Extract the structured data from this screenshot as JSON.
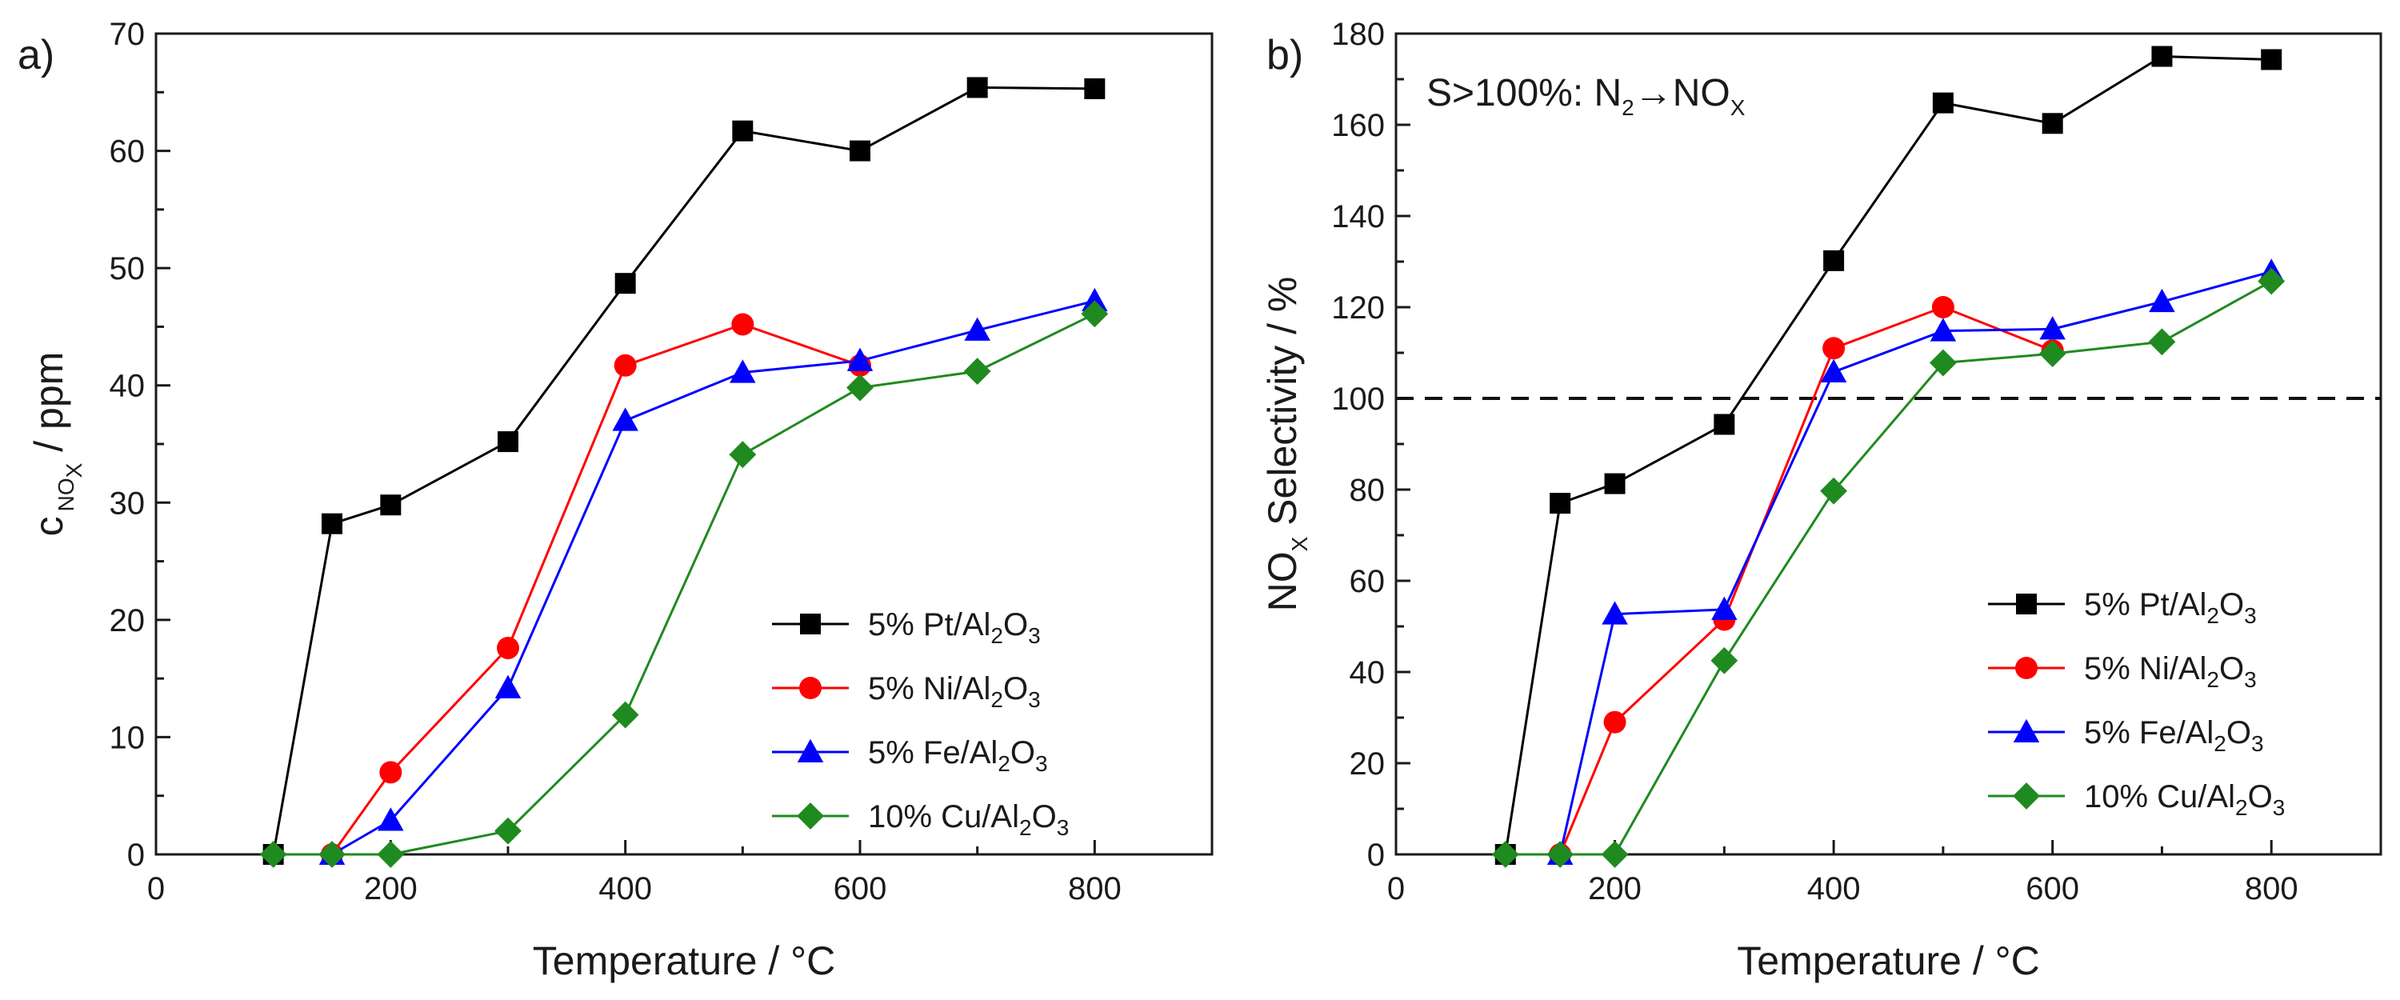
{
  "chart_data": [
    {
      "type": "line",
      "panel": "a)",
      "xlabel": "Temperature / °C",
      "ylabel": {
        "base": "c",
        "sub": "NO",
        "subsub": "X",
        "rest": " / ppm"
      },
      "xlim": [
        0,
        900
      ],
      "ylim": [
        0,
        70
      ],
      "xticks": [
        0,
        200,
        400,
        600,
        800
      ],
      "yticks": [
        0,
        10,
        20,
        30,
        40,
        50,
        60,
        70
      ],
      "legend_position": "lower-right",
      "series": [
        {
          "name": "5% Pt/Al2O3",
          "label": [
            "5% Pt/Al",
            "2",
            "O",
            "3"
          ],
          "color": "#000000",
          "marker": "square",
          "x": [
            100,
            150,
            200,
            300,
            400,
            500,
            600,
            700,
            800
          ],
          "y": [
            0,
            28.2,
            29.8,
            35.2,
            48.7,
            61.7,
            60,
            65.4,
            65.3
          ]
        },
        {
          "name": "5% Ni/Al2O3",
          "label": [
            "5% Ni/Al",
            "2",
            "O",
            "3"
          ],
          "color": "#ff0000",
          "marker": "circle",
          "x": [
            150,
            200,
            300,
            400,
            500,
            600
          ],
          "y": [
            0,
            7,
            17.6,
            41.7,
            45.2,
            41.7
          ]
        },
        {
          "name": "5% Fe/Al2O3",
          "label": [
            "5% Fe/Al",
            "2",
            "O",
            "3"
          ],
          "color": "#0000ff",
          "marker": "triangle",
          "x": [
            150,
            200,
            300,
            400,
            500,
            600,
            700,
            800
          ],
          "y": [
            0,
            2.9,
            14.2,
            37,
            41.1,
            42.1,
            44.7,
            47.2
          ]
        },
        {
          "name": "10% Cu/Al2O3",
          "label": [
            "10% Cu/Al",
            "2",
            "O",
            "3"
          ],
          "color": "#1f8a1f",
          "marker": "diamond",
          "x": [
            100,
            150,
            200,
            300,
            400,
            500,
            600,
            700,
            800
          ],
          "y": [
            0,
            0,
            0,
            2,
            11.9,
            34.1,
            39.8,
            41.2,
            46.1
          ]
        }
      ]
    },
    {
      "type": "line",
      "panel": "b)",
      "xlabel": "Temperature / °C",
      "ylabel": {
        "base": "NO",
        "sub": "X",
        "rest": " Selectivity / %"
      },
      "xlim": [
        0,
        900
      ],
      "ylim": [
        0,
        180
      ],
      "xticks": [
        0,
        200,
        400,
        600,
        800
      ],
      "yticks": [
        0,
        20,
        40,
        60,
        80,
        100,
        120,
        140,
        160,
        180
      ],
      "reference_line": 100,
      "annotation": {
        "pre": "S>100%: N",
        "sub1": "2",
        "arrow": "→NO",
        "sub2": "X"
      },
      "legend_position": "lower-right",
      "series": [
        {
          "name": "5% Pt/Al2O3",
          "label": [
            "5% Pt/Al",
            "2",
            "O",
            "3"
          ],
          "color": "#000000",
          "marker": "square",
          "x": [
            100,
            150,
            200,
            300,
            400,
            500,
            600,
            700,
            800
          ],
          "y": [
            0,
            77,
            81.3,
            94.3,
            130.2,
            164.8,
            160.3,
            175,
            174.3
          ]
        },
        {
          "name": "5% Ni/Al2O3",
          "label": [
            "5% Ni/Al",
            "2",
            "O",
            "3"
          ],
          "color": "#ff0000",
          "marker": "circle",
          "x": [
            150,
            200,
            300,
            400,
            500,
            600
          ],
          "y": [
            0,
            29,
            51.5,
            111,
            120,
            110.5
          ]
        },
        {
          "name": "5% Fe/Al2O3",
          "label": [
            "5% Fe/Al",
            "2",
            "O",
            "3"
          ],
          "color": "#0000ff",
          "marker": "triangle",
          "x": [
            150,
            200,
            300,
            400,
            500,
            600,
            700,
            800
          ],
          "y": [
            0,
            52.7,
            53.7,
            105.8,
            114.8,
            115.2,
            121.2,
            127.8
          ]
        },
        {
          "name": "10% Cu/Al2O3",
          "label": [
            "10% Cu/Al",
            "2",
            "O",
            "3"
          ],
          "color": "#1f8a1f",
          "marker": "diamond",
          "x": [
            100,
            150,
            200,
            300,
            400,
            500,
            600,
            700,
            800
          ],
          "y": [
            0,
            0,
            0,
            42.5,
            79.7,
            107.8,
            109.8,
            112.4,
            125.7
          ]
        }
      ]
    }
  ]
}
